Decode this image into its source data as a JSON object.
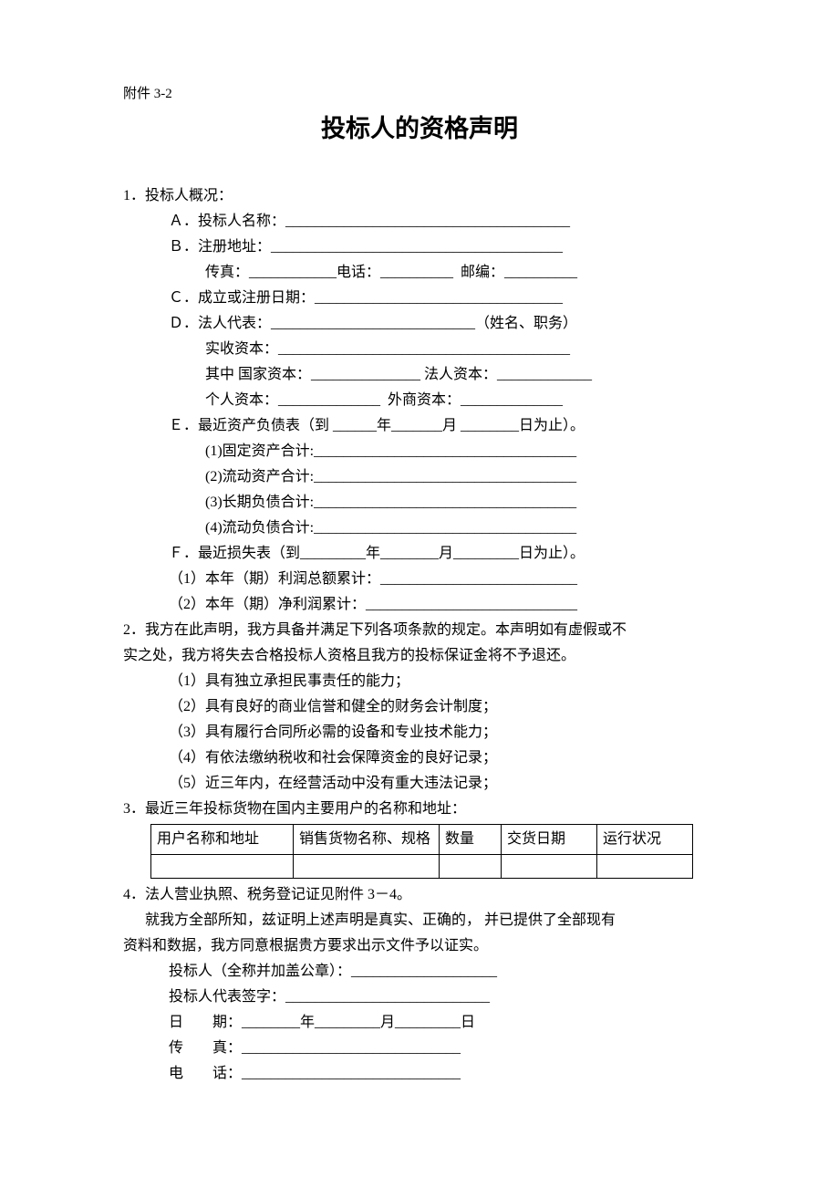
{
  "attachment_label": "附件 3-2",
  "title": "投标人的资格声明",
  "section1": {
    "heading": "1．投标人概况：",
    "A": "Ａ．投标人名称：_______________________________________",
    "B1": "Ｂ．注册地址：________________________________________",
    "B2": "传真：____________电话：__________  邮编：__________",
    "C": "Ｃ．成立或注册日期：__________________________________",
    "D1": "Ｄ．法人代表：____________________________（姓名、职务）",
    "D2": "实收资本：________________________________________",
    "D3": "其中 国家资本：_______________ 法人资本：_____________",
    "D4": "个人资本：______________  外商资本：______________",
    "E": "Ｅ．最近资产负债表（到 ______年_______月 ________日为止）。",
    "E1": "(1)固定资产合计:____________________________________",
    "E2": "(2)流动资产合计:____________________________________",
    "E3": "(3)长期负债合计:____________________________________",
    "E4": "(4)流动负债合计:____________________________________",
    "F": "Ｆ．最近损失表（到_________年________月_________日为止）。",
    "F1": "（1）本年（期）利润总额累计：___________________________",
    "F2": "（2）本年（期）净利润累计：_____________________________"
  },
  "section2": {
    "p1": "2．我方在此声明，我方具备并满足下列各项条款的规定。本声明如有虚假或不",
    "p2": "实之处，我方将失去合格投标人资格且我方的投标保证金将不予退还。",
    "i1": "（1）具有独立承担民事责任的能力；",
    "i2": "（2）具有良好的商业信誉和健全的财务会计制度；",
    "i3": "（3）具有履行合同所必需的设备和专业技术能力；",
    "i4": "（4）有依法缴纳税收和社会保障资金的良好记录；",
    "i5": "（5）近三年内，在经营活动中没有重大违法记录；"
  },
  "section3": {
    "heading": "3．最近三年投标货物在国内主要用户的名称和地址：",
    "table": {
      "headers": [
        "用户名称和地址",
        "销售货物名称、规格",
        "数量",
        "交货日期",
        "运行状况"
      ],
      "rows": [
        [
          "",
          "",
          "",
          "",
          ""
        ]
      ]
    }
  },
  "section4": {
    "heading": "4．法人营业执照、税务登记证见附件 3－4。",
    "p1": "      就我方全部所知，兹证明上述声明是真实、正确的， 并已提供了全部现有",
    "p2": "资料和数据，我方同意根据贵方要求出示文件予以证实。",
    "sig1": "投标人（全称并加盖公章）：____________________",
    "sig2": "投标人代表签字：____________________________",
    "sig3": "日        期：________年_________月_________日",
    "sig4": "传        真：______________________________",
    "sig5": "电        话：______________________________"
  }
}
